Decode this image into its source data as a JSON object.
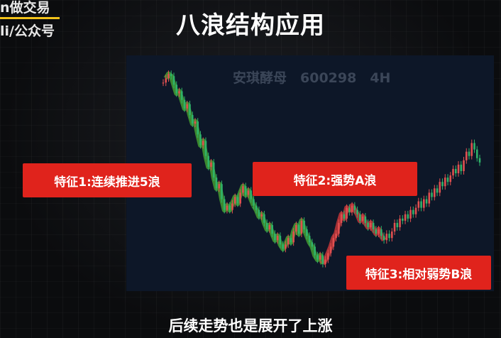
{
  "header": {
    "brand_line1": "n做交易",
    "brand_line2": "li/公众号",
    "title": "八浪结构应用"
  },
  "badges": {
    "feature1": "特征1:连续推进5浪",
    "feature2": "特征2:强势A浪",
    "feature3": "特征3:相对弱势B浪"
  },
  "footer": {
    "subtitle": "后续走势也是展开了上涨"
  },
  "colors": {
    "badge_red": "#e0231c",
    "wave_green": "#4caf32",
    "wave_red": "#d83a3a",
    "candle_up": "#e05050",
    "candle_down": "#2fb36a",
    "panel_bg": "#0d1728"
  },
  "chart_data": {
    "type": "line",
    "title": "安琪酵母　600298　4H",
    "xlabel": "",
    "ylabel": "",
    "grid": false,
    "ylim": [
      0,
      100
    ],
    "x": [
      0,
      1,
      2,
      3,
      4,
      5,
      6,
      7,
      8,
      9,
      10,
      11,
      12,
      13,
      14,
      15,
      16,
      17,
      18,
      19,
      20,
      21,
      22,
      23,
      24,
      25,
      26,
      27,
      28,
      29,
      30,
      31,
      32,
      33,
      34,
      35,
      36,
      37,
      38,
      39,
      40,
      41,
      42,
      43,
      44,
      45,
      46,
      47,
      48,
      49,
      50,
      51,
      52,
      53,
      54,
      55,
      56,
      57,
      58,
      59,
      60,
      61,
      62,
      63,
      64,
      65,
      66,
      67,
      68,
      69,
      70,
      71,
      72,
      73,
      74,
      75,
      76,
      77,
      78,
      79,
      80,
      81,
      82,
      83,
      84,
      85,
      86,
      87,
      88,
      89,
      90,
      91,
      92,
      93,
      94,
      95,
      96,
      97,
      98,
      99,
      100,
      101,
      102,
      103,
      104,
      105,
      106,
      107,
      108,
      109,
      110,
      111,
      112,
      113,
      114,
      115,
      116,
      117,
      118,
      119
    ],
    "series": [
      {
        "values": [
          92,
          94,
          96,
          95,
          91,
          87,
          88,
          84,
          80,
          82,
          77,
          73,
          74,
          68,
          63,
          65,
          58,
          53,
          55,
          48,
          43,
          45,
          38,
          33,
          35,
          33,
          36,
          39,
          36,
          41,
          44,
          40,
          42,
          38,
          35,
          33,
          30,
          31,
          27,
          24,
          26,
          22,
          19,
          21,
          17,
          15,
          17,
          20,
          18,
          23,
          26,
          22,
          28,
          24,
          21,
          18,
          16,
          12,
          10,
          12,
          8,
          10,
          13,
          16,
          20,
          22,
          27,
          31,
          29,
          34,
          32,
          35,
          33,
          31,
          28,
          30,
          27,
          25,
          27,
          24,
          22,
          24,
          21,
          19,
          22,
          20,
          23,
          27,
          25,
          29,
          28,
          31,
          29,
          33,
          31,
          34,
          37,
          34,
          38,
          36,
          41,
          39,
          43,
          41,
          46,
          44,
          48,
          46,
          49,
          52,
          50,
          54,
          51,
          56,
          60,
          58,
          64,
          61,
          57,
          55
        ]
      }
    ],
    "wave_segments": [
      {
        "from": 1,
        "to": 34,
        "color": "green"
      },
      {
        "from": 34,
        "to": 60,
        "color": "green"
      },
      {
        "from": 60,
        "to": 70,
        "color": "red"
      },
      {
        "from": 70,
        "to": 83,
        "color": "red"
      }
    ]
  }
}
